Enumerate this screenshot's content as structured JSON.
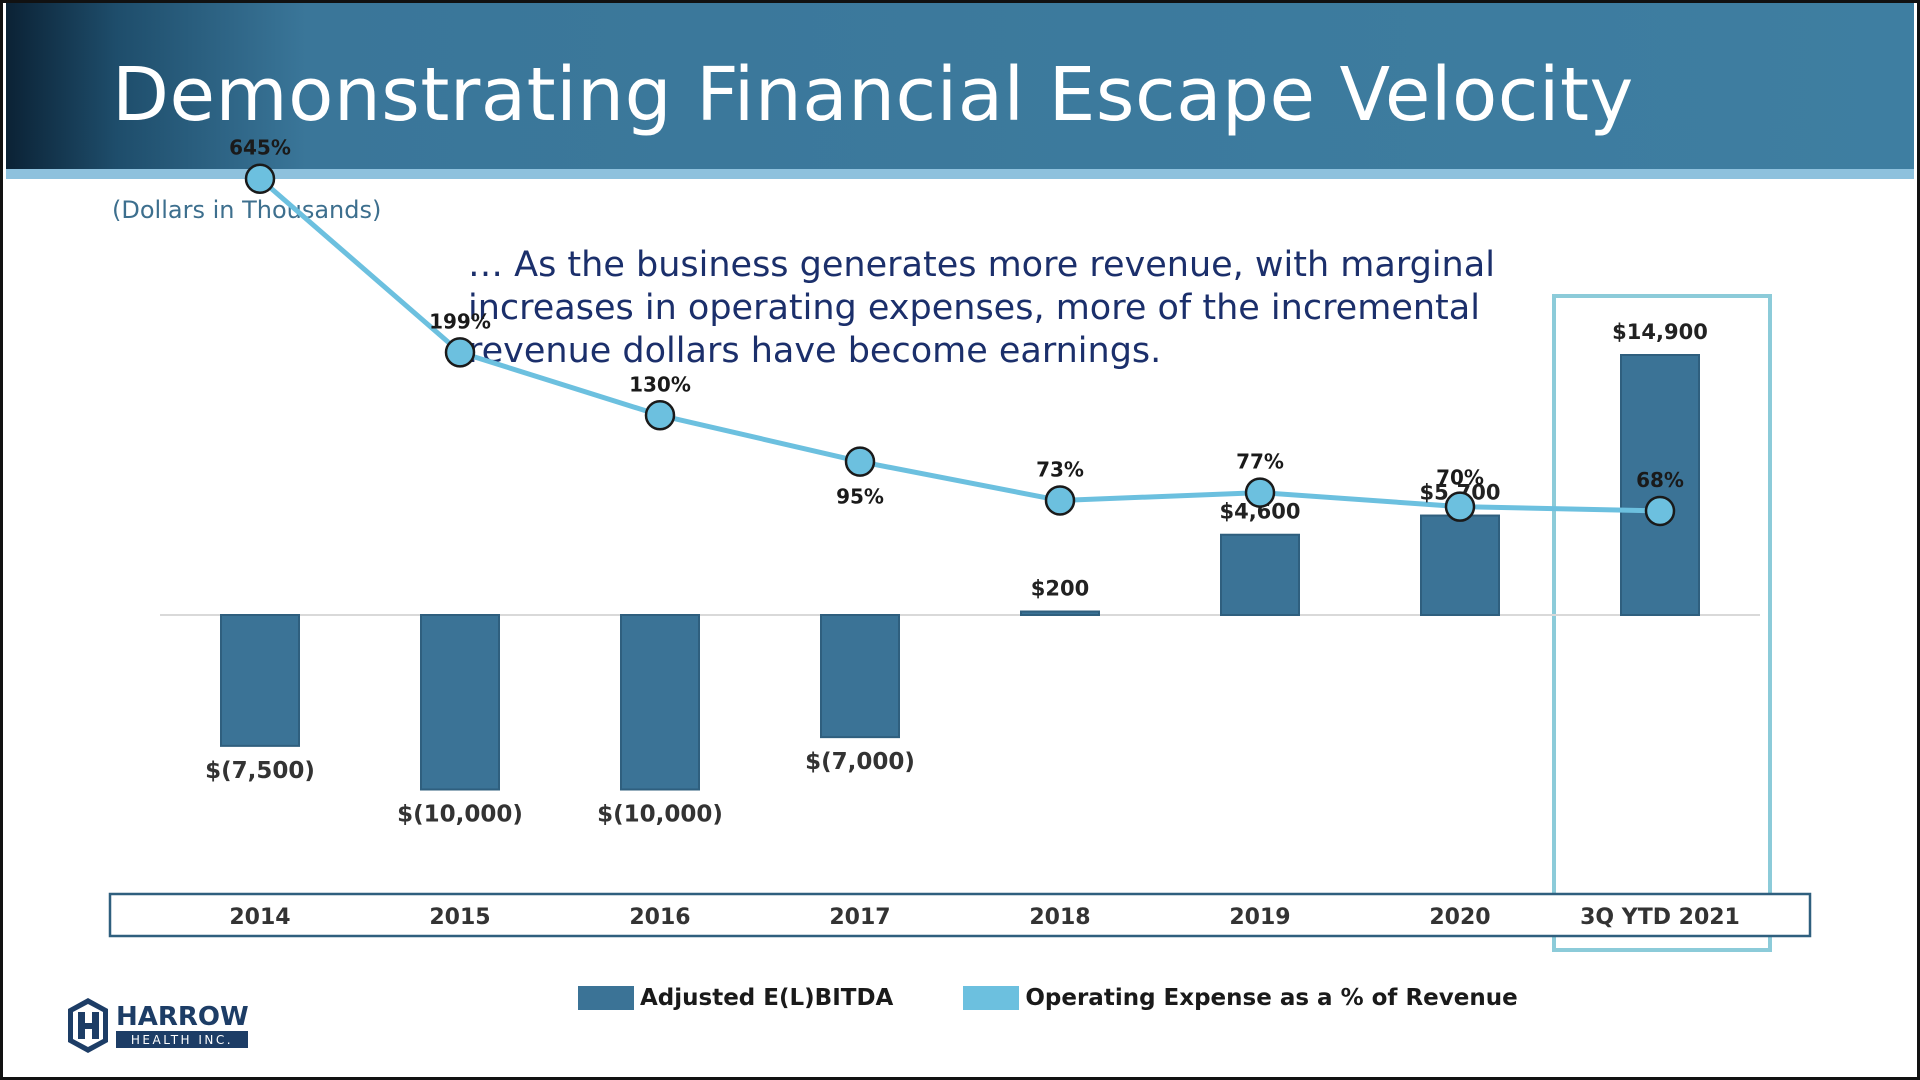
{
  "slide": {
    "title": "Demonstrating Financial Escape Velocity",
    "subtitle": "(Dollars in Thousands)",
    "note": "… As the business generates more revenue, with marginal increases in operating expenses, more of the incremental revenue dollars have become earnings."
  },
  "logo": {
    "name": "HARROW",
    "tagline": "HEALTH INC."
  },
  "colors": {
    "bar": "#3b7396",
    "line": "#6cc0df",
    "header": "#3e7ea1",
    "highlight_box": "#8ccbd9"
  },
  "chart_data": {
    "type": "bar",
    "categories": [
      "2014",
      "2015",
      "2016",
      "2017",
      "2018",
      "2019",
      "2020",
      "3Q YTD 2021"
    ],
    "series": [
      {
        "name": "Adjusted E(L)BITDA",
        "type": "bar",
        "values": [
          -7500,
          -10000,
          -10000,
          -7000,
          200,
          4600,
          5700,
          14900
        ],
        "labels": [
          "$(7,500)",
          "$(10,000)",
          "$(10,000)",
          "$(7,000)",
          "$200",
          "$4,600",
          "$5,700",
          "$14,900"
        ]
      },
      {
        "name": "Operating Expense as a % of Revenue",
        "type": "line",
        "values": [
          645,
          199,
          130,
          95,
          73,
          77,
          70,
          68
        ],
        "labels": [
          "645%",
          "199%",
          "130%",
          "95%",
          "73%",
          "77%",
          "70%",
          "68%"
        ]
      }
    ],
    "highlighted_category": "3Q YTD 2021",
    "grid": false,
    "legend_position": "bottom"
  }
}
